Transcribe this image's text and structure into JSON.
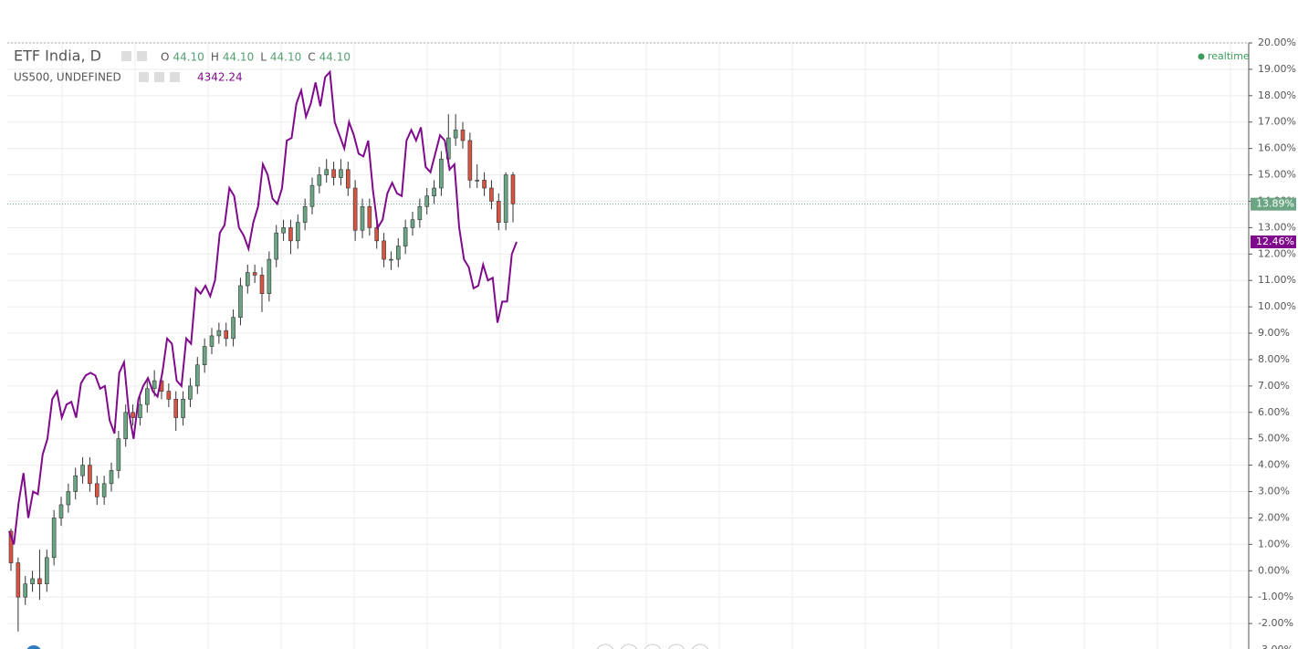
{
  "chart_data": {
    "type": "candlestick",
    "title": "ETF India, D",
    "ohlc_legend": [
      {
        "key": "O",
        "value": 44.1,
        "label": "44.10"
      },
      {
        "key": "H",
        "value": 44.1,
        "label": "44.10"
      },
      {
        "key": "L",
        "value": 44.1,
        "label": "44.10"
      },
      {
        "key": "C",
        "value": 44.1,
        "label": "44.10"
      }
    ],
    "status": "realtime",
    "candles": {
      "name": "ETF India",
      "up_color": "#6ba583",
      "down_color": "#d75442",
      "last_label": "13.89%",
      "ohlc": [
        [
          1.5,
          1.6,
          0.0,
          0.3
        ],
        [
          0.3,
          0.5,
          -2.3,
          -1.0
        ],
        [
          -1.0,
          -0.2,
          -1.3,
          -0.5
        ],
        [
          -0.5,
          0.0,
          -0.8,
          -0.3
        ],
        [
          -0.3,
          0.8,
          -1.1,
          -0.5
        ],
        [
          -0.5,
          0.8,
          -0.8,
          0.5
        ],
        [
          0.5,
          2.3,
          0.2,
          2.0
        ],
        [
          2.0,
          2.8,
          1.7,
          2.5
        ],
        [
          2.5,
          3.3,
          2.2,
          3.0
        ],
        [
          3.0,
          3.9,
          2.7,
          3.6
        ],
        [
          3.6,
          4.3,
          3.3,
          4.0
        ],
        [
          4.0,
          4.3,
          3.0,
          3.3
        ],
        [
          3.3,
          3.6,
          2.5,
          2.8
        ],
        [
          2.8,
          3.6,
          2.5,
          3.3
        ],
        [
          3.3,
          4.1,
          3.0,
          3.8
        ],
        [
          3.8,
          5.3,
          3.5,
          5.0
        ],
        [
          5.0,
          6.3,
          4.7,
          6.0
        ],
        [
          6.0,
          6.3,
          5.5,
          5.8
        ],
        [
          5.8,
          6.6,
          5.5,
          6.3
        ],
        [
          6.3,
          7.2,
          6.0,
          6.9
        ],
        [
          6.9,
          7.6,
          6.6,
          7.2
        ],
        [
          7.2,
          7.5,
          6.5,
          6.8
        ],
        [
          6.8,
          7.1,
          6.2,
          6.5
        ],
        [
          6.5,
          6.8,
          5.3,
          5.8
        ],
        [
          5.8,
          6.8,
          5.5,
          6.5
        ],
        [
          6.5,
          7.3,
          6.2,
          7.0
        ],
        [
          7.0,
          8.1,
          6.7,
          7.8
        ],
        [
          7.8,
          8.8,
          7.5,
          8.5
        ],
        [
          8.5,
          9.2,
          8.2,
          8.9
        ],
        [
          8.9,
          9.4,
          8.6,
          9.1
        ],
        [
          9.1,
          9.4,
          8.5,
          8.8
        ],
        [
          8.8,
          9.9,
          8.5,
          9.6
        ],
        [
          9.6,
          11.1,
          9.3,
          10.8
        ],
        [
          10.8,
          11.6,
          10.5,
          11.3
        ],
        [
          11.3,
          11.6,
          10.9,
          11.2
        ],
        [
          11.2,
          11.5,
          9.8,
          10.5
        ],
        [
          10.5,
          12.1,
          10.2,
          11.8
        ],
        [
          11.8,
          13.1,
          11.5,
          12.8
        ],
        [
          12.8,
          13.3,
          12.5,
          13.0
        ],
        [
          13.0,
          13.3,
          12.0,
          12.5
        ],
        [
          12.5,
          13.5,
          12.2,
          13.2
        ],
        [
          13.2,
          14.1,
          12.9,
          13.8
        ],
        [
          13.8,
          14.9,
          13.5,
          14.6
        ],
        [
          14.6,
          15.3,
          14.3,
          15.0
        ],
        [
          15.0,
          15.6,
          14.7,
          15.2
        ],
        [
          15.2,
          15.5,
          14.6,
          14.9
        ],
        [
          14.9,
          15.6,
          14.6,
          15.2
        ],
        [
          15.2,
          15.5,
          14.2,
          14.5
        ],
        [
          14.5,
          14.8,
          12.5,
          12.9
        ],
        [
          12.9,
          14.1,
          12.6,
          13.8
        ],
        [
          13.8,
          14.1,
          12.7,
          13.0
        ],
        [
          13.0,
          13.3,
          12.2,
          12.5
        ],
        [
          12.5,
          12.8,
          11.5,
          11.8
        ],
        [
          11.8,
          12.1,
          11.4,
          11.8
        ],
        [
          11.8,
          12.6,
          11.5,
          12.3
        ],
        [
          12.3,
          13.3,
          12.0,
          13.0
        ],
        [
          13.0,
          13.6,
          12.7,
          13.3
        ],
        [
          13.3,
          14.1,
          13.0,
          13.8
        ],
        [
          13.8,
          14.5,
          13.5,
          14.2
        ],
        [
          14.2,
          14.8,
          13.9,
          14.5
        ],
        [
          14.5,
          15.9,
          14.2,
          15.6
        ],
        [
          15.6,
          17.3,
          15.3,
          16.4
        ],
        [
          16.4,
          17.3,
          16.1,
          16.7
        ],
        [
          16.7,
          17.0,
          16.0,
          16.3
        ],
        [
          16.3,
          16.6,
          14.5,
          14.8
        ],
        [
          14.8,
          15.4,
          14.5,
          14.8
        ],
        [
          14.8,
          15.1,
          14.2,
          14.5
        ],
        [
          14.5,
          14.8,
          13.7,
          14.0
        ],
        [
          14.0,
          14.3,
          12.9,
          13.2
        ],
        [
          13.2,
          15.1,
          12.9,
          15.0
        ],
        [
          15.0,
          15.1,
          13.2,
          13.89
        ]
      ]
    },
    "compare": {
      "name": "US500, UNDEFINED",
      "price": 4342.24,
      "price_label": "4342.24",
      "color": "#800a8c",
      "last_label": "12.46%",
      "values": [
        1.5,
        1.0,
        2.6,
        3.7,
        2.0,
        3.0,
        2.9,
        4.4,
        5.0,
        6.5,
        6.8,
        5.8,
        6.3,
        6.4,
        5.8,
        7.1,
        7.4,
        7.5,
        7.4,
        6.9,
        7.0,
        5.7,
        5.2,
        7.5,
        7.9,
        6.0,
        5.0,
        6.5,
        7.0,
        7.3,
        6.8,
        6.6,
        7.5,
        8.8,
        8.6,
        7.2,
        7.0,
        8.8,
        8.6,
        10.7,
        10.5,
        10.8,
        10.4,
        11.0,
        12.8,
        13.1,
        14.5,
        14.2,
        13.0,
        12.7,
        12.2,
        13.2,
        13.8,
        15.4,
        15.0,
        14.1,
        13.9,
        14.5,
        16.3,
        16.4,
        17.7,
        18.2,
        17.2,
        17.7,
        18.5,
        17.6,
        18.7,
        18.9,
        17.0,
        16.5,
        16.0,
        17.0,
        16.5,
        15.8,
        15.7,
        16.3,
        14.4,
        13.0,
        13.3,
        14.3,
        14.7,
        14.3,
        14.2,
        16.3,
        16.7,
        16.3,
        16.8,
        15.3,
        15.1,
        15.8,
        16.5,
        16.3,
        15.2,
        15.4,
        13.0,
        11.8,
        11.5,
        10.7,
        10.8,
        11.6,
        11.0,
        11.1,
        9.4,
        10.2,
        10.2,
        12.0,
        12.46
      ]
    },
    "ylim": [
      -3,
      20
    ],
    "yticks": [
      {
        "value": -3,
        "label": "-3.00%"
      },
      {
        "value": -2,
        "label": "-2.00%"
      },
      {
        "value": -1,
        "label": "-1.00%"
      },
      {
        "value": 0,
        "label": "0.00%"
      },
      {
        "value": 1,
        "label": "1.00%"
      },
      {
        "value": 2,
        "label": "2.00%"
      },
      {
        "value": 3,
        "label": "3.00%"
      },
      {
        "value": 4,
        "label": "4.00%"
      },
      {
        "value": 5,
        "label": "5.00%"
      },
      {
        "value": 6,
        "label": "6.00%"
      },
      {
        "value": 7,
        "label": "7.00%"
      },
      {
        "value": 8,
        "label": "8.00%"
      },
      {
        "value": 9,
        "label": "9.00%"
      },
      {
        "value": 10,
        "label": "10.00%"
      },
      {
        "value": 11,
        "label": "11.00%"
      },
      {
        "value": 12,
        "label": "12.00%"
      },
      {
        "value": 13,
        "label": "13.00%"
      },
      {
        "value": 14,
        "label": "14.00%"
      },
      {
        "value": 15,
        "label": "15.00%"
      },
      {
        "value": 16,
        "label": "16.00%"
      },
      {
        "value": 17,
        "label": "17.00%"
      },
      {
        "value": 18,
        "label": "18.00%"
      },
      {
        "value": 19,
        "label": "19.00%"
      },
      {
        "value": 20,
        "label": "20.00%"
      }
    ],
    "grid": true
  }
}
